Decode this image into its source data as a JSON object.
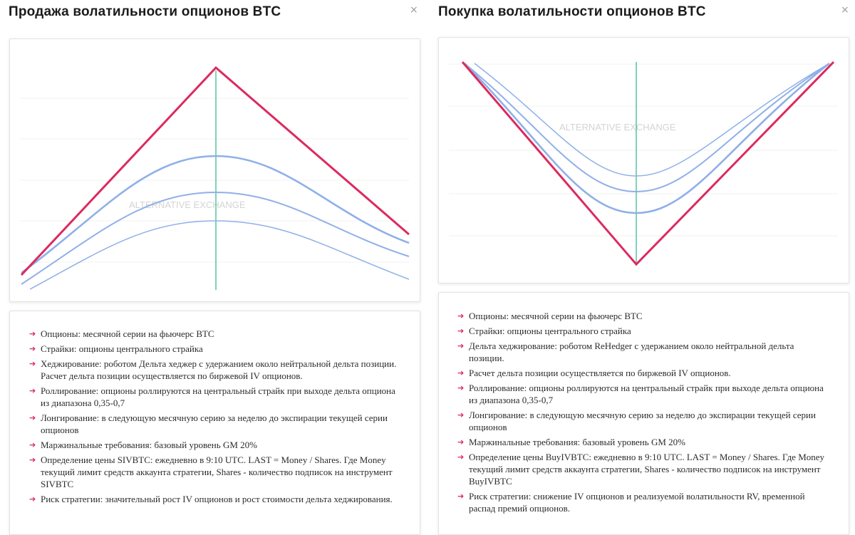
{
  "panels": [
    {
      "title": "Продажа волатильности опционов BTC",
      "close_label": "×",
      "watermark": "ALTERNATIVE EXCHANGE",
      "colors": {
        "payoff": "#dc2a5e",
        "curves": "#8fb0e8",
        "center": "#2fb38d",
        "grid": "#f0f0f0"
      },
      "items": [
        "Опционы: месячной серии на фьючерс BTC",
        "Страйки: опционы центрального страйка",
        "Хеджирование: роботом Дельта хеджер с удержанием около нейтральной дельта позиции. Расчет дельта позиции осуществляется по биржевой IV опционов.",
        "Роллирование: опционы роллируются на центральный страйк при выходе дельта опциона из диапазона 0,35-0,7",
        "Лонгирование: в следующую месячную серию за неделю до экспирации текущей серии опционов",
        "Маржинальные требования: базовый уровень GM 20%",
        "Определение цены SIVBTC: ежедневно в 9:10 UTC. LAST = Money / Shares. Где Money текущий лимит средств аккаунта стратегии, Shares - количество подписок на инструмент SIVBTC",
        "Риск стратегии: значительный рост IV опционов и рост стоимости дельта хеджирования."
      ]
    },
    {
      "title": "Покупка волатильности опционов BTC",
      "close_label": "×",
      "watermark": "ALTERNATIVE EXCHANGE",
      "colors": {
        "payoff": "#dc2a5e",
        "curves": "#8fb0e8",
        "center": "#2fb38d",
        "grid": "#f0f0f0"
      },
      "items": [
        "Опционы: месячной серии на фьючерс BTC",
        "Страйки: опционы центрального страйка",
        "Дельта хеджирование: роботом ReHedger с удержанием около нейтральной дельта позиции.",
        "Расчет дельта позиции осуществляется по биржевой IV опционов.",
        "Роллирование: опционы роллируются на центральный страйк при выходе дельта опциона из диапазона 0,35-0,7",
        "Лонгирование: в следующую месячную серию за неделю до экспирации текущей серии опционов",
        "Маржинальные требования: базовый уровень GM 20%",
        "Определение цены BuyIVBTC: ежедневно в 9:10 UTC. LAST = Money / Shares. Где Money текущий лимит средств аккаунта стратегии, Shares - количество подписок на инструмент BuyIVBTC",
        "Риск стратегии: снижение IV опционов и реализуемой волатильности RV, временной распад премий опционов."
      ]
    }
  ]
}
